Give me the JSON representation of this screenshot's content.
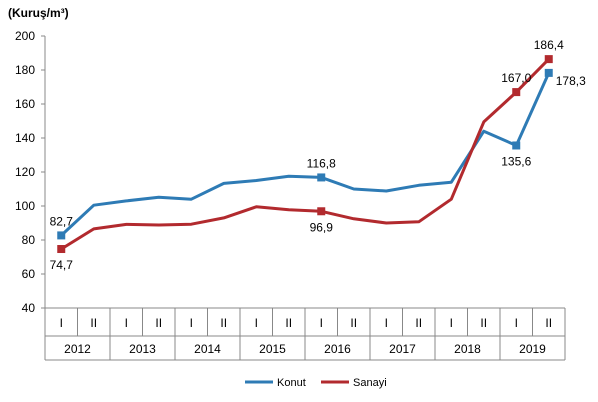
{
  "chart_data": {
    "type": "line",
    "ylabel": "(Kuruş/m³)",
    "ylim": [
      40,
      200
    ],
    "yticks": [
      "40",
      "60",
      "80",
      "100",
      "120",
      "140",
      "160",
      "180",
      "200"
    ],
    "categories": [
      "I",
      "II",
      "I",
      "II",
      "I",
      "II",
      "I",
      "II",
      "I",
      "II",
      "I",
      "II",
      "I",
      "II",
      "I",
      "II"
    ],
    "years": [
      "2012",
      "2013",
      "2014",
      "2015",
      "2016",
      "2017",
      "2018",
      "2019"
    ],
    "series": [
      {
        "name": "Konut",
        "color": "#2e7bb5",
        "values": [
          82.7,
          100.5,
          103,
          105.2,
          104,
          113.3,
          115,
          117.5,
          116.8,
          110,
          108.8,
          112.2,
          114,
          144,
          135.6,
          178.3
        ],
        "labels": [
          {
            "index": 0,
            "text": "82,7",
            "position": "above"
          },
          {
            "index": 8,
            "text": "116,8",
            "position": "above"
          },
          {
            "index": 14,
            "text": "135,6",
            "position": "below"
          },
          {
            "index": 15,
            "text": "178,3",
            "position": "right"
          }
        ]
      },
      {
        "name": "Sanayi",
        "color": "#b22a2e",
        "values": [
          74.7,
          86.5,
          89.2,
          88.8,
          89.3,
          93,
          99.5,
          97.8,
          96.9,
          92.5,
          90,
          90.7,
          104,
          149.5,
          167.0,
          186.4
        ],
        "labels": [
          {
            "index": 0,
            "text": "74,7",
            "position": "below"
          },
          {
            "index": 8,
            "text": "96,9",
            "position": "below"
          },
          {
            "index": 14,
            "text": "167,0",
            "position": "above"
          },
          {
            "index": 15,
            "text": "186,4",
            "position": "above"
          }
        ]
      }
    ],
    "legend": {
      "position": "bottom",
      "items": [
        "Konut",
        "Sanayi"
      ]
    },
    "grid": false
  }
}
